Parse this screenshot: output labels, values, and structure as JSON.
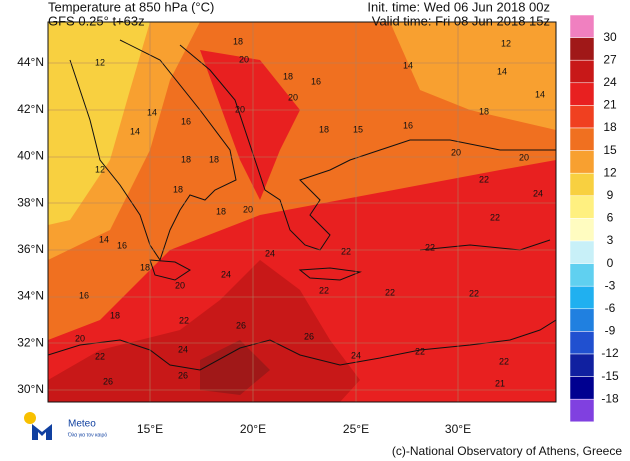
{
  "header": {
    "title": "Temperature at 850 hPa (°C)",
    "model": "GFS 0.25° t+63z",
    "init_time": "Init. time: Wed 06 Jun 2018 00z",
    "valid_time": "Valid time: Fri 08 Jun 2018 15z"
  },
  "map": {
    "lat_labels": [
      "44°N",
      "42°N",
      "40°N",
      "38°N",
      "36°N",
      "34°N",
      "32°N",
      "30°N"
    ],
    "lon_labels": [
      "15°E",
      "20°E",
      "25°E",
      "30°E"
    ],
    "contour_labels": [
      "12",
      "18",
      "20",
      "18",
      "16",
      "14",
      "14",
      "12",
      "14",
      "14",
      "16",
      "18",
      "20",
      "20",
      "18",
      "15",
      "16",
      "18",
      "14",
      "12",
      "18",
      "20",
      "20",
      "22",
      "24",
      "18",
      "20",
      "18",
      "22",
      "14",
      "16",
      "18",
      "22",
      "22",
      "24",
      "24",
      "20",
      "16",
      "22",
      "22",
      "22",
      "18",
      "22",
      "26",
      "20",
      "24",
      "26",
      "22",
      "24",
      "22",
      "22",
      "26",
      "26",
      "21"
    ]
  },
  "colorbar": {
    "labels": [
      "30",
      "27",
      "24",
      "21",
      "18",
      "15",
      "12",
      "9",
      "6",
      "3",
      "0",
      "-3",
      "-6",
      "-9",
      "-12",
      "-15",
      "-18"
    ],
    "colors": [
      "#f080c0",
      "#a01818",
      "#c81818",
      "#e82020",
      "#f04020",
      "#f07020",
      "#f8a030",
      "#f8d040",
      "#fff080",
      "#fffcc0",
      "#c8f0f8",
      "#60d0f0",
      "#20b0f0",
      "#2080e0",
      "#2050d0",
      "#1020a0",
      "#000090",
      "#8040e0"
    ]
  },
  "logo": {
    "name": "Meteo",
    "tagline": "Όλα για τον καιρό"
  },
  "footer": {
    "credit": "(c)-National Observatory of Athens, Greece"
  }
}
